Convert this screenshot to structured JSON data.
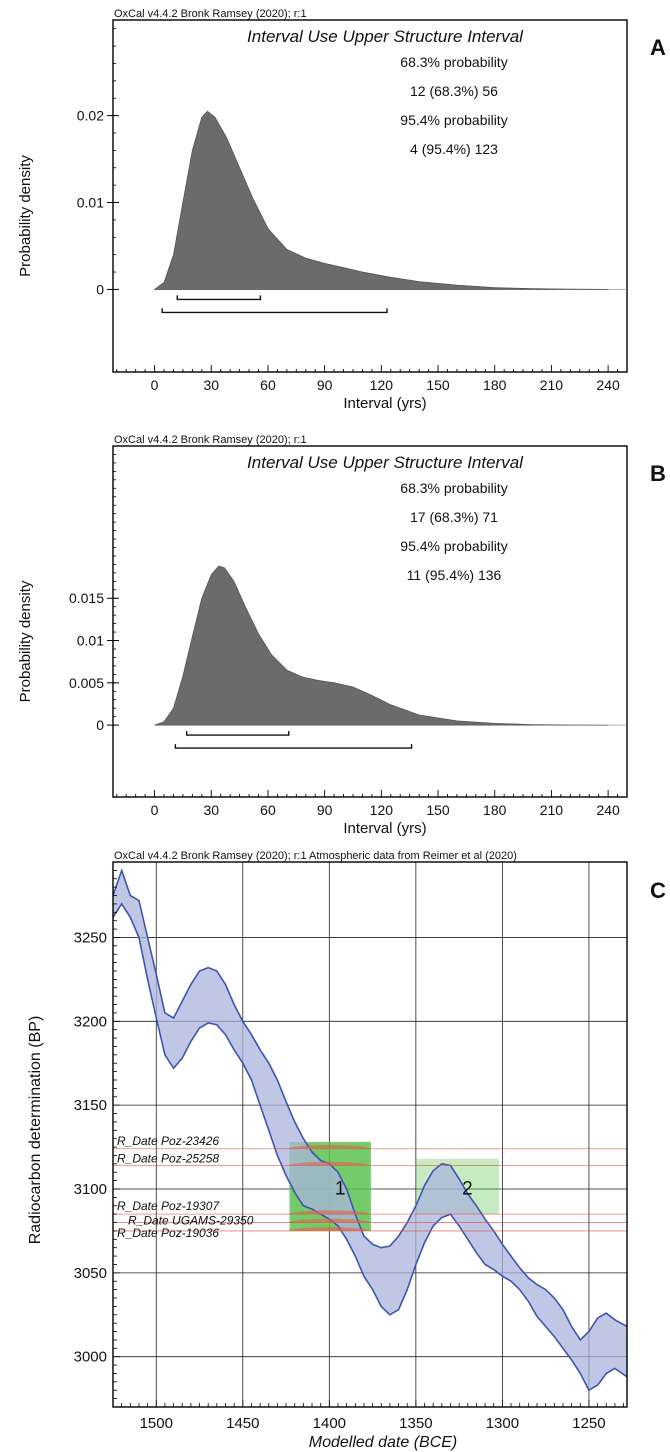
{
  "chart_data": [
    {
      "panel": "A",
      "type": "area",
      "header": "OxCal v4.4.2 Bronk Ramsey (2020); r:1",
      "title": "Interval Use Upper Structure Interval",
      "stats": [
        "68.3% probability",
        "12 (68.3%) 56",
        "95.4% probability",
        "4 (95.4%) 123"
      ],
      "xlabel": "Interval (yrs)",
      "ylabel": "Probability density",
      "xlim": [
        -22,
        250
      ],
      "ylim": [
        -0.0095,
        0.031
      ],
      "xticks": [
        0,
        30,
        60,
        90,
        120,
        150,
        180,
        210,
        240
      ],
      "yticks": [
        {
          "v": 0,
          "label": "0"
        },
        {
          "v": 0.01,
          "label": "0.01"
        },
        {
          "v": 0.02,
          "label": "0.02"
        }
      ],
      "x": [
        0,
        5,
        10,
        15,
        20,
        25,
        28,
        32,
        38,
        45,
        52,
        60,
        70,
        80,
        90,
        100,
        110,
        125,
        140,
        160,
        180,
        200,
        220,
        240
      ],
      "y": [
        0,
        0.0008,
        0.004,
        0.01,
        0.016,
        0.0198,
        0.0205,
        0.0198,
        0.0175,
        0.014,
        0.0105,
        0.007,
        0.0046,
        0.0036,
        0.003,
        0.0025,
        0.002,
        0.0014,
        0.0009,
        0.0005,
        0.0002,
        0.0001,
        3e-05,
        0
      ],
      "ranges": [
        {
          "from": 12,
          "to": 56
        },
        {
          "from": 4,
          "to": 123
        }
      ]
    },
    {
      "panel": "B",
      "type": "area",
      "header": "OxCal v4.4.2 Bronk Ramsey (2020); r:1",
      "title": "Interval Use Upper Structure Interval",
      "stats": [
        "68.3% probability",
        "17 (68.3%) 71",
        "95.4% probability",
        "11 (95.4%) 136"
      ],
      "xlabel": "Interval (yrs)",
      "ylabel": "Probability density",
      "xlim": [
        -22,
        250
      ],
      "ylim": [
        -0.0085,
        0.033
      ],
      "xticks": [
        0,
        30,
        60,
        90,
        120,
        150,
        180,
        210,
        240
      ],
      "yticks": [
        {
          "v": 0,
          "label": "0"
        },
        {
          "v": 0.005,
          "label": "0.005"
        },
        {
          "v": 0.01,
          "label": "0.01"
        },
        {
          "v": 0.015,
          "label": "0.015"
        }
      ],
      "x": [
        0,
        5,
        10,
        15,
        20,
        25,
        30,
        34,
        37,
        42,
        48,
        55,
        62,
        70,
        78,
        86,
        95,
        105,
        115,
        125,
        140,
        160,
        180,
        200,
        220,
        240
      ],
      "y": [
        0,
        0.0004,
        0.002,
        0.0058,
        0.0105,
        0.015,
        0.0178,
        0.0188,
        0.0186,
        0.017,
        0.014,
        0.0108,
        0.0083,
        0.0065,
        0.0057,
        0.0053,
        0.005,
        0.0045,
        0.0035,
        0.0024,
        0.0012,
        0.0005,
        0.0002,
        6e-05,
        1e-05,
        0
      ],
      "ranges": [
        {
          "from": 17,
          "to": 71
        },
        {
          "from": 11,
          "to": 136
        }
      ]
    },
    {
      "panel": "C",
      "type": "area",
      "header": "OxCal v4.4.2 Bronk Ramsey (2020); r:1 Atmospheric data from Reimer et al (2020)",
      "xlabel": "Modelled date (BCE)",
      "ylabel": "Radiocarbon determination (BP)",
      "xlim": [
        1525,
        1228
      ],
      "ylim": [
        2970,
        3295
      ],
      "xticks": [
        1500,
        1450,
        1400,
        1350,
        1300,
        1250
      ],
      "yticks": [
        3000,
        3050,
        3100,
        3150,
        3200,
        3250
      ],
      "curve_x": [
        1525,
        1520,
        1515,
        1510,
        1505,
        1500,
        1495,
        1490,
        1485,
        1480,
        1475,
        1470,
        1465,
        1460,
        1455,
        1450,
        1445,
        1440,
        1435,
        1430,
        1425,
        1420,
        1415,
        1410,
        1405,
        1400,
        1395,
        1390,
        1385,
        1380,
        1375,
        1370,
        1365,
        1360,
        1355,
        1350,
        1345,
        1340,
        1335,
        1330,
        1325,
        1320,
        1315,
        1310,
        1305,
        1300,
        1295,
        1290,
        1285,
        1280,
        1275,
        1270,
        1265,
        1260,
        1255,
        1250,
        1245,
        1240,
        1235,
        1228
      ],
      "curve_upper": [
        3275,
        3290,
        3275,
        3272,
        3250,
        3228,
        3205,
        3202,
        3212,
        3222,
        3230,
        3232,
        3230,
        3222,
        3210,
        3200,
        3192,
        3183,
        3175,
        3165,
        3152,
        3140,
        3130,
        3122,
        3117,
        3115,
        3110,
        3100,
        3085,
        3072,
        3067,
        3065,
        3066,
        3072,
        3080,
        3090,
        3102,
        3111,
        3115,
        3114,
        3106,
        3097,
        3090,
        3082,
        3075,
        3067,
        3060,
        3053,
        3047,
        3043,
        3040,
        3035,
        3028,
        3018,
        3010,
        3015,
        3023,
        3026,
        3022,
        3018
      ],
      "curve_lower": [
        3262,
        3270,
        3262,
        3250,
        3225,
        3202,
        3180,
        3172,
        3178,
        3188,
        3196,
        3199,
        3198,
        3192,
        3183,
        3175,
        3165,
        3150,
        3135,
        3120,
        3108,
        3098,
        3090,
        3088,
        3085,
        3082,
        3078,
        3070,
        3060,
        3048,
        3040,
        3030,
        3025,
        3028,
        3040,
        3055,
        3068,
        3078,
        3083,
        3085,
        3078,
        3070,
        3062,
        3055,
        3052,
        3048,
        3045,
        3040,
        3033,
        3024,
        3018,
        3012,
        3005,
        2998,
        2990,
        2980,
        2983,
        2990,
        2993,
        2988
      ],
      "dates": [
        {
          "label": "R_Date Poz-23426",
          "y": 3124
        },
        {
          "label": "R_Date Poz-25258",
          "y": 3114
        },
        {
          "label": "R_Date Poz-19307",
          "y": 3085
        },
        {
          "label": "R_Date UGAMS-29350",
          "y": 3080
        },
        {
          "label": "R_Date Poz-19036",
          "y": 3075
        }
      ],
      "phases": [
        {
          "label": "1",
          "x_from": 1423,
          "x_to": 1376,
          "y_from": 3075,
          "y_to": 3128
        },
        {
          "label": "2",
          "x_from": 1350,
          "x_to": 1302,
          "y_from": 3085,
          "y_to": 3118
        }
      ]
    }
  ],
  "panel_labels": [
    "A",
    "B",
    "C"
  ],
  "colors": {
    "density": "#6b6b6b",
    "curve_fill": "#aab4dc",
    "curve_line": "#3e55b0",
    "phase_fill": "#5bc24f",
    "date_line": "#e05a4e"
  }
}
